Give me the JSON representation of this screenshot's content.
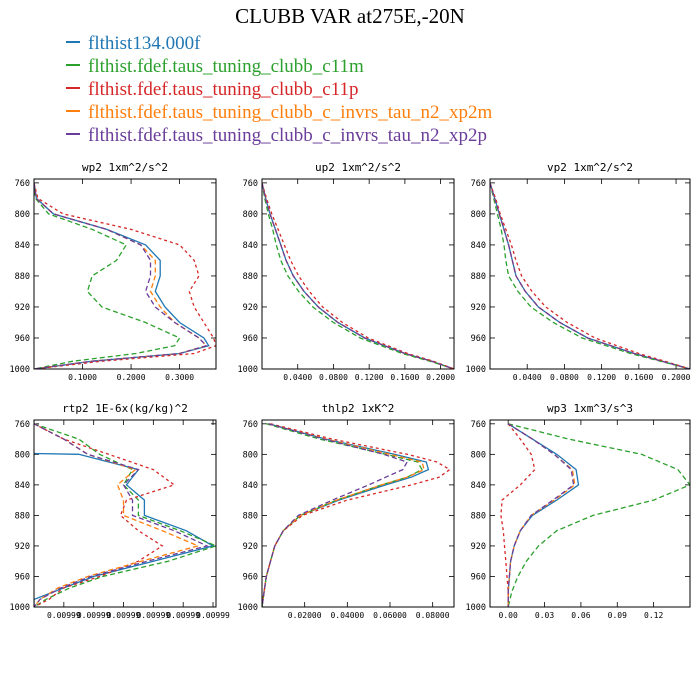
{
  "title": "CLUBB VAR at275E,-20N",
  "legend": [
    {
      "label": "flthist134.000f",
      "color": "#1f77b4"
    },
    {
      "label": "flthist.fdef.taus_tuning_clubb_c11m",
      "color": "#2ca02c"
    },
    {
      "label": "flthist.fdef.taus_tuning_clubb_c11p",
      "color": "#d62728"
    },
    {
      "label": "flthist.fdef.taus_tuning_clubb_c_invrs_tau_n2_xp2m",
      "color": "#ff7f0e"
    },
    {
      "label": "flthist.fdef.taus_tuning_clubb_c_invrs_tau_n2_xp2p",
      "color": "#6a3d9a"
    }
  ],
  "chart_data": [
    {
      "type": "line",
      "title": "wp2  1xm^2/s^2",
      "ylim": [
        1000,
        755
      ],
      "xlim": [
        0,
        0.375
      ],
      "xticks": [
        0.1,
        0.2,
        0.3
      ],
      "xtick_labels": [
        "0.1000",
        "0.2000",
        "0.3000"
      ],
      "yticks": [
        760,
        800,
        840,
        880,
        920,
        960,
        1000
      ],
      "y": [
        760,
        780,
        800,
        820,
        840,
        860,
        880,
        900,
        920,
        940,
        960,
        970,
        980,
        990,
        1000
      ],
      "series": [
        {
          "values": [
            0.0,
            0.005,
            0.04,
            0.15,
            0.23,
            0.26,
            0.26,
            0.25,
            0.27,
            0.3,
            0.35,
            0.36,
            0.3,
            0.12,
            0.0
          ]
        },
        {
          "values": [
            0.0,
            0.003,
            0.03,
            0.12,
            0.19,
            0.17,
            0.12,
            0.11,
            0.14,
            0.23,
            0.3,
            0.29,
            0.21,
            0.08,
            0.0
          ]
        },
        {
          "values": [
            0.0,
            0.008,
            0.06,
            0.2,
            0.3,
            0.33,
            0.34,
            0.32,
            0.33,
            0.35,
            0.37,
            0.375,
            0.33,
            0.14,
            0.0
          ]
        },
        {
          "values": [
            0.0,
            0.005,
            0.04,
            0.15,
            0.22,
            0.25,
            0.25,
            0.24,
            0.26,
            0.29,
            0.34,
            0.355,
            0.3,
            0.12,
            0.0
          ]
        },
        {
          "values": [
            0.0,
            0.005,
            0.04,
            0.15,
            0.22,
            0.24,
            0.24,
            0.23,
            0.25,
            0.29,
            0.34,
            0.355,
            0.3,
            0.12,
            0.0
          ]
        }
      ]
    },
    {
      "type": "line",
      "title": "up2  1xm^2/s^2",
      "ylim": [
        1000,
        755
      ],
      "xlim": [
        0,
        0.215
      ],
      "xticks": [
        0.04,
        0.08,
        0.12,
        0.16,
        0.2
      ],
      "xtick_labels": [
        "0.0400",
        "0.0800",
        "0.1200",
        "0.1600",
        "0.2000"
      ],
      "yticks": [
        760,
        800,
        840,
        880,
        920,
        960,
        1000
      ],
      "y": [
        760,
        780,
        800,
        820,
        840,
        860,
        880,
        900,
        920,
        940,
        960,
        980,
        990,
        1000
      ],
      "series": [
        {
          "values": [
            0.0,
            0.004,
            0.009,
            0.015,
            0.021,
            0.027,
            0.035,
            0.047,
            0.063,
            0.085,
            0.115,
            0.16,
            0.19,
            0.215
          ]
        },
        {
          "values": [
            0.0,
            0.003,
            0.007,
            0.012,
            0.016,
            0.021,
            0.029,
            0.041,
            0.057,
            0.08,
            0.11,
            0.157,
            0.188,
            0.215
          ]
        },
        {
          "values": [
            0.0,
            0.005,
            0.011,
            0.018,
            0.025,
            0.032,
            0.041,
            0.053,
            0.068,
            0.09,
            0.119,
            0.163,
            0.192,
            0.215
          ]
        },
        {
          "values": [
            0.0,
            0.004,
            0.009,
            0.015,
            0.021,
            0.027,
            0.035,
            0.047,
            0.063,
            0.085,
            0.115,
            0.16,
            0.19,
            0.215
          ]
        },
        {
          "values": [
            0.0,
            0.004,
            0.009,
            0.015,
            0.021,
            0.027,
            0.035,
            0.047,
            0.063,
            0.085,
            0.115,
            0.16,
            0.19,
            0.215
          ]
        }
      ]
    },
    {
      "type": "line",
      "title": "vp2  1xm^2/s^2",
      "ylim": [
        1000,
        755
      ],
      "xlim": [
        0,
        0.215
      ],
      "xticks": [
        0.04,
        0.08,
        0.12,
        0.16,
        0.2
      ],
      "xtick_labels": [
        "0.0400",
        "0.0800",
        "0.1200",
        "0.1600",
        "0.2000"
      ],
      "yticks": [
        760,
        800,
        840,
        880,
        920,
        960,
        1000
      ],
      "y": [
        760,
        780,
        800,
        820,
        840,
        860,
        880,
        900,
        920,
        940,
        960,
        980,
        990,
        1000
      ],
      "series": [
        {
          "values": [
            0.0,
            0.005,
            0.01,
            0.015,
            0.02,
            0.024,
            0.028,
            0.038,
            0.052,
            0.075,
            0.105,
            0.155,
            0.185,
            0.215
          ]
        },
        {
          "values": [
            0.0,
            0.004,
            0.008,
            0.012,
            0.015,
            0.017,
            0.02,
            0.03,
            0.044,
            0.068,
            0.099,
            0.151,
            0.183,
            0.215
          ]
        },
        {
          "values": [
            0.0,
            0.006,
            0.011,
            0.017,
            0.023,
            0.028,
            0.034,
            0.045,
            0.06,
            0.083,
            0.113,
            0.16,
            0.188,
            0.215
          ]
        },
        {
          "values": [
            0.0,
            0.005,
            0.01,
            0.015,
            0.02,
            0.024,
            0.028,
            0.038,
            0.052,
            0.075,
            0.105,
            0.155,
            0.185,
            0.215
          ]
        },
        {
          "values": [
            0.0,
            0.005,
            0.01,
            0.015,
            0.02,
            0.024,
            0.028,
            0.038,
            0.052,
            0.075,
            0.105,
            0.155,
            0.185,
            0.215
          ]
        }
      ]
    },
    {
      "type": "line",
      "title": "rtp2  1E-6x(kg/kg)^2",
      "ylim": [
        1000,
        755
      ],
      "xlim": [
        0.00994,
        0.010001
      ],
      "xticks": [
        0.00995,
        0.00996,
        0.00997,
        0.00998,
        0.00999,
        0.01
      ],
      "xtick_labels": [
        "0.00999",
        "0.00999",
        "0.00999",
        "0.00999",
        "0.00999",
        "0.00999"
      ],
      "yticks": [
        760,
        800,
        840,
        880,
        920,
        960,
        1000
      ],
      "y": [
        760,
        780,
        800,
        820,
        840,
        860,
        880,
        900,
        920,
        940,
        960,
        975,
        990,
        1000
      ],
      "series": [
        {
          "values": [
            0.00994,
            0.00967,
            0.009955,
            0.009975,
            0.009971,
            0.009977,
            0.009977,
            0.009991,
            0.01,
            0.00998,
            0.00996,
            0.00995,
            0.00994,
            0.00994
          ]
        },
        {
          "values": [
            0.00994,
            0.009955,
            0.009962,
            0.009973,
            0.00997,
            0.009975,
            0.009975,
            0.009989,
            0.010001,
            0.009985,
            0.009963,
            0.009952,
            0.009944,
            0.00994
          ]
        },
        {
          "values": [
            0.00994,
            0.00995,
            0.009965,
            0.00998,
            0.009987,
            0.009971,
            0.009969,
            0.009975,
            0.009983,
            0.009975,
            0.009962,
            0.00995,
            0.009945,
            0.00994
          ]
        },
        {
          "values": [
            0.00994,
            0.00995,
            0.009958,
            0.009974,
            0.009968,
            0.00997,
            0.00997,
            0.009983,
            0.009995,
            0.009976,
            0.009958,
            0.009948,
            0.009942,
            0.00994
          ]
        },
        {
          "values": [
            0.00994,
            0.00995,
            0.009958,
            0.009975,
            0.00997,
            0.009973,
            0.009973,
            0.009987,
            0.009998,
            0.009978,
            0.009959,
            0.009949,
            0.009942,
            0.00994
          ]
        }
      ]
    },
    {
      "type": "line",
      "title": "thlp2  1xK^2",
      "ylim": [
        1000,
        755
      ],
      "xlim": [
        0,
        0.09
      ],
      "xticks": [
        0.02,
        0.04,
        0.06,
        0.08
      ],
      "xtick_labels": [
        "0.02000",
        "0.04000",
        "0.06000",
        "0.08000"
      ],
      "yticks": [
        760,
        800,
        840,
        880,
        920,
        960,
        1000
      ],
      "y": [
        760,
        780,
        800,
        810,
        820,
        830,
        840,
        860,
        880,
        900,
        920,
        940,
        960,
        980,
        1000
      ],
      "series": [
        {
          "values": [
            0.003,
            0.03,
            0.062,
            0.077,
            0.078,
            0.07,
            0.058,
            0.036,
            0.018,
            0.01,
            0.006,
            0.004,
            0.002,
            0.001,
            0.0
          ]
        },
        {
          "values": [
            0.002,
            0.027,
            0.058,
            0.073,
            0.075,
            0.068,
            0.056,
            0.035,
            0.018,
            0.01,
            0.006,
            0.004,
            0.002,
            0.001,
            0.0
          ]
        },
        {
          "values": [
            0.004,
            0.033,
            0.068,
            0.082,
            0.088,
            0.083,
            0.07,
            0.04,
            0.019,
            0.01,
            0.006,
            0.004,
            0.002,
            0.001,
            0.0
          ]
        },
        {
          "values": [
            0.003,
            0.03,
            0.06,
            0.075,
            0.076,
            0.068,
            0.056,
            0.035,
            0.018,
            0.01,
            0.006,
            0.004,
            0.002,
            0.001,
            0.0
          ]
        },
        {
          "values": [
            0.003,
            0.029,
            0.057,
            0.068,
            0.066,
            0.058,
            0.05,
            0.033,
            0.017,
            0.01,
            0.006,
            0.004,
            0.002,
            0.001,
            0.0
          ]
        }
      ]
    },
    {
      "type": "line",
      "title": "wp3  1xm^3/s^3",
      "ylim": [
        1000,
        755
      ],
      "xlim": [
        -0.015,
        0.15
      ],
      "xticks": [
        0.0,
        0.03,
        0.06,
        0.09,
        0.12
      ],
      "xtick_labels": [
        "0.00",
        "0.03",
        "0.06",
        "0.09",
        "0.12"
      ],
      "yticks": [
        760,
        800,
        840,
        880,
        920,
        960,
        1000
      ],
      "y": [
        760,
        780,
        800,
        820,
        840,
        860,
        880,
        900,
        920,
        940,
        960,
        980,
        1000
      ],
      "series": [
        {
          "values": [
            0.0,
            0.02,
            0.04,
            0.056,
            0.058,
            0.04,
            0.02,
            0.01,
            0.005,
            0.002,
            0.001,
            0.0,
            0.0
          ]
        },
        {
          "values": [
            0.0,
            0.05,
            0.11,
            0.14,
            0.15,
            0.12,
            0.07,
            0.04,
            0.025,
            0.015,
            0.008,
            0.003,
            0.0
          ]
        },
        {
          "values": [
            0.0,
            0.01,
            0.019,
            0.022,
            0.01,
            -0.005,
            -0.006,
            -0.004,
            -0.003,
            -0.002,
            -0.001,
            0.0,
            0.0
          ]
        },
        {
          "values": [
            0.0,
            0.02,
            0.038,
            0.053,
            0.055,
            0.038,
            0.019,
            0.01,
            0.005,
            0.002,
            0.001,
            0.0,
            0.0
          ]
        },
        {
          "values": [
            0.0,
            0.02,
            0.038,
            0.052,
            0.054,
            0.037,
            0.019,
            0.01,
            0.005,
            0.002,
            0.001,
            0.0,
            0.0
          ]
        }
      ]
    }
  ]
}
